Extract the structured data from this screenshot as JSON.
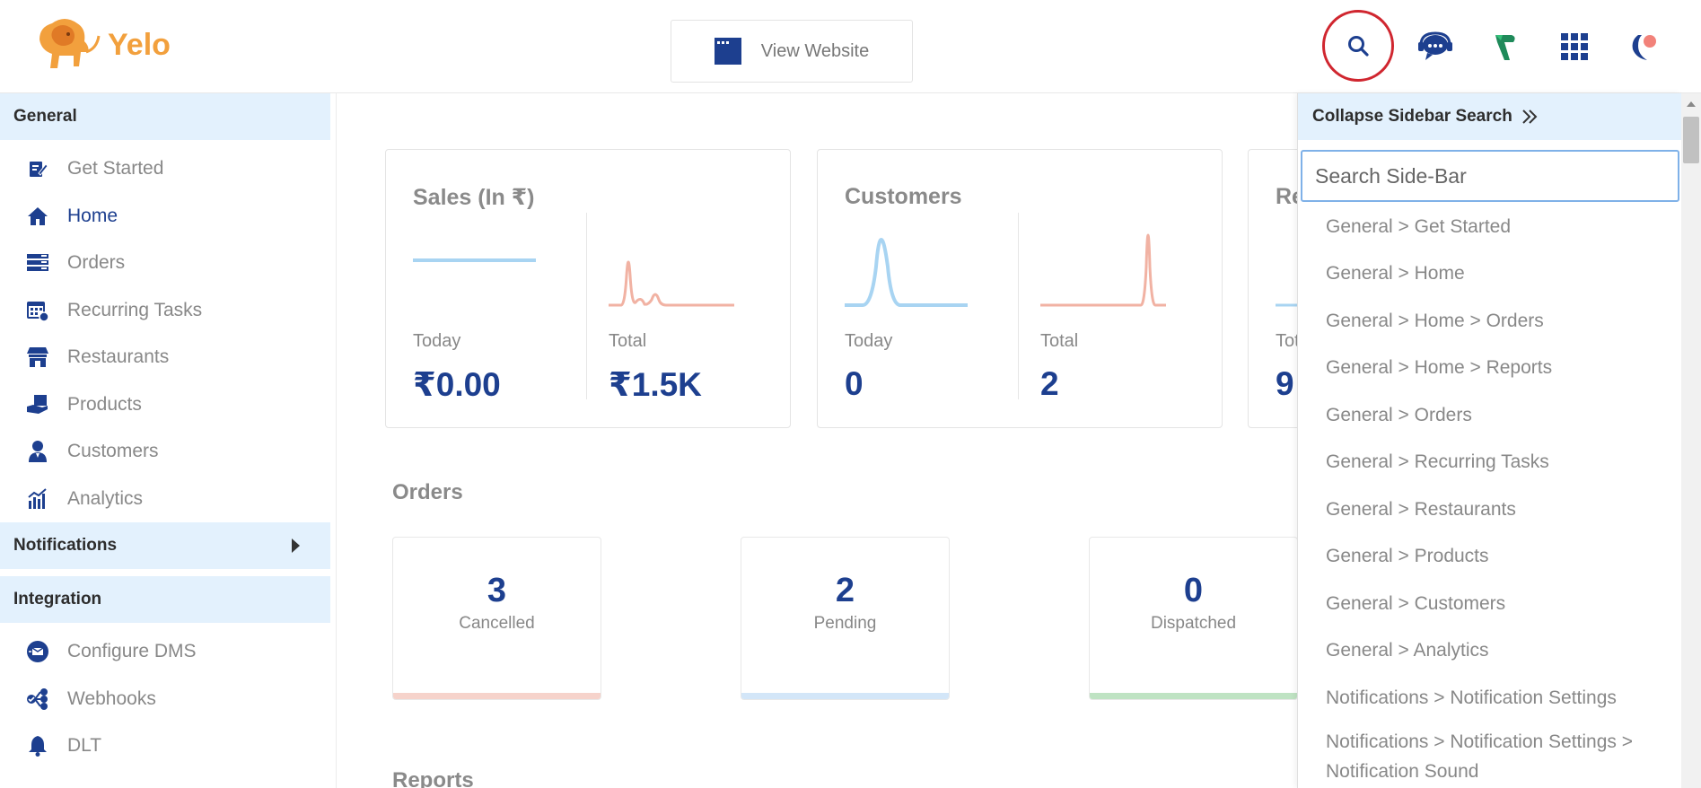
{
  "brand": {
    "name": "Yelo",
    "color": "#f2a03d"
  },
  "header": {
    "view_website": "View Website",
    "icons": [
      "search-icon",
      "support-chat-icon",
      "partner-logo-icon",
      "apps-grid-icon",
      "profile-icon"
    ]
  },
  "sidebar": {
    "general_label": "General",
    "general_items": [
      {
        "label": "Get Started",
        "icon": "get-started-icon"
      },
      {
        "label": "Home",
        "icon": "home-icon",
        "active": true
      },
      {
        "label": "Orders",
        "icon": "orders-icon"
      },
      {
        "label": "Recurring Tasks",
        "icon": "recurring-tasks-icon"
      },
      {
        "label": "Restaurants",
        "icon": "restaurants-icon"
      },
      {
        "label": "Products",
        "icon": "products-icon"
      },
      {
        "label": "Customers",
        "icon": "customers-icon"
      },
      {
        "label": "Analytics",
        "icon": "analytics-icon"
      }
    ],
    "notifications_label": "Notifications",
    "integration_label": "Integration",
    "integration_items": [
      {
        "label": "Configure DMS",
        "icon": "configure-dms-icon"
      },
      {
        "label": "Webhooks",
        "icon": "webhooks-icon"
      },
      {
        "label": "DLT",
        "icon": "dlt-bell-icon"
      }
    ]
  },
  "dashboard": {
    "sales": {
      "title": "Sales (In ₹)",
      "today_label": "Today",
      "today_value": "₹0.00",
      "total_label": "Total",
      "total_value": "₹1.5K"
    },
    "customers": {
      "title": "Customers",
      "today_label": "Today",
      "today_value": "0",
      "total_label": "Total",
      "total_value": "2"
    },
    "third": {
      "title": "Re",
      "total_label": "Tot",
      "total_value": "9"
    },
    "orders_title": "Orders",
    "order_stats": [
      {
        "count": "3",
        "label": "Cancelled",
        "color": "#f6d3cb"
      },
      {
        "count": "2",
        "label": "Pending",
        "color": "#d3e6f8"
      },
      {
        "count": "0",
        "label": "Dispatched",
        "color": "#bfe3c3"
      }
    ],
    "reports_title": "Reports"
  },
  "search_panel": {
    "collapse_label": "Collapse Sidebar Search",
    "placeholder": "Search Side-Bar",
    "results": [
      "General > Get Started",
      "General > Home",
      "General > Home > Orders",
      "General > Home > Reports",
      "General > Orders",
      "General > Recurring Tasks",
      "General > Restaurants",
      "General > Products",
      "General > Customers",
      "General > Analytics",
      "Notifications > Notification Settings",
      "Notifications > Notification Settings > Notification Sound"
    ]
  },
  "colors": {
    "primary": "#1d3f8f",
    "section_bg": "#e3f1fd",
    "search_highlight": "#d0262f",
    "spark_blue": "#a8d4f2",
    "spark_red": "#f1b2a3"
  }
}
